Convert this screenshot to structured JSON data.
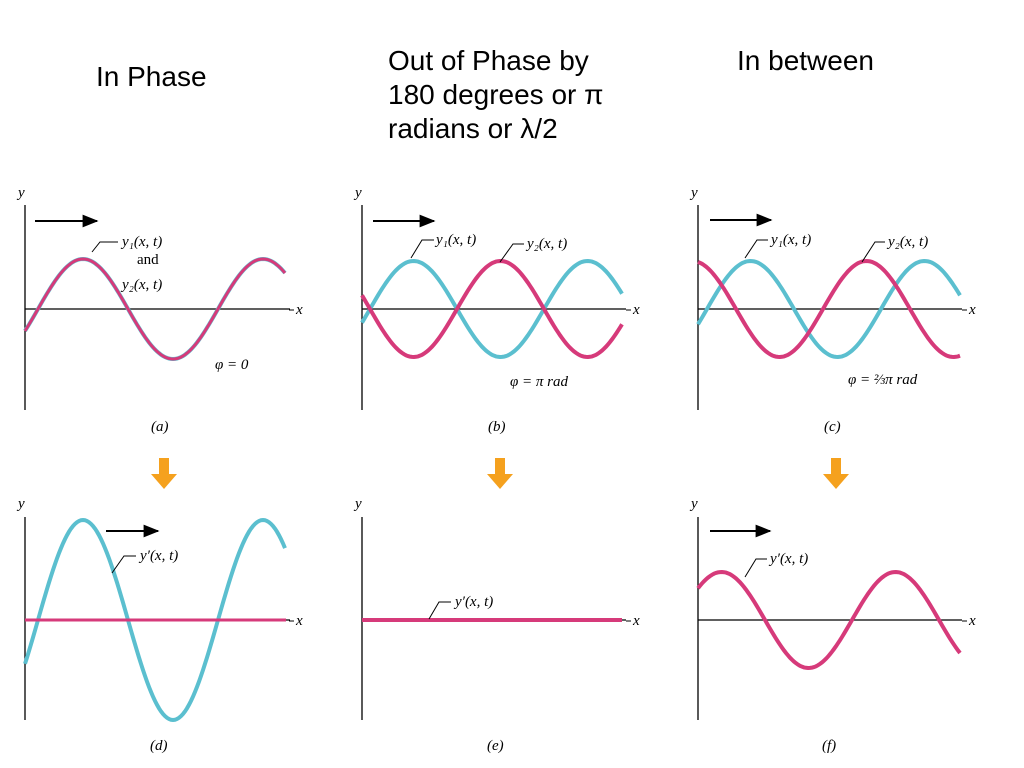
{
  "headings": {
    "in_phase": "In Phase",
    "out_of_phase": "Out of Phase by\n180 degrees or π\nradians or λ/2",
    "in_between": "In between"
  },
  "colors": {
    "wave_1": "#5bbfcf",
    "wave_2": "#d63a7a",
    "arrow": "#f5a11e",
    "axis": "#000000"
  },
  "axis_labels": {
    "y": "y",
    "x": "x"
  },
  "panels": [
    {
      "id": "a",
      "caption": "(a)",
      "phase_label": "φ = 0",
      "wave_labels": [
        "y₁(x, t)",
        "and",
        "y₂(x, t)"
      ],
      "phase_fraction_of_pi": 0
    },
    {
      "id": "b",
      "caption": "(b)",
      "phase_label": "φ = π rad",
      "wave_labels": [
        "y₁(x, t)",
        "y₂(x, t)"
      ],
      "phase_fraction_of_pi": 1
    },
    {
      "id": "c",
      "caption": "(c)",
      "phase_label": "φ = ⅔π rad",
      "wave_labels": [
        "y₁(x, t)",
        "y₂(x, t)"
      ],
      "phase_fraction_of_pi": 0.6667
    },
    {
      "id": "d",
      "caption": "(d)",
      "wave_labels": [
        "y′(x, t)"
      ],
      "resultant_amplitude": 2
    },
    {
      "id": "e",
      "caption": "(e)",
      "wave_labels": [
        "y′(x, t)"
      ],
      "resultant_amplitude": 0
    },
    {
      "id": "f",
      "caption": "(f)",
      "wave_labels": [
        "y′(x, t)"
      ],
      "resultant_amplitude": 1
    }
  ]
}
